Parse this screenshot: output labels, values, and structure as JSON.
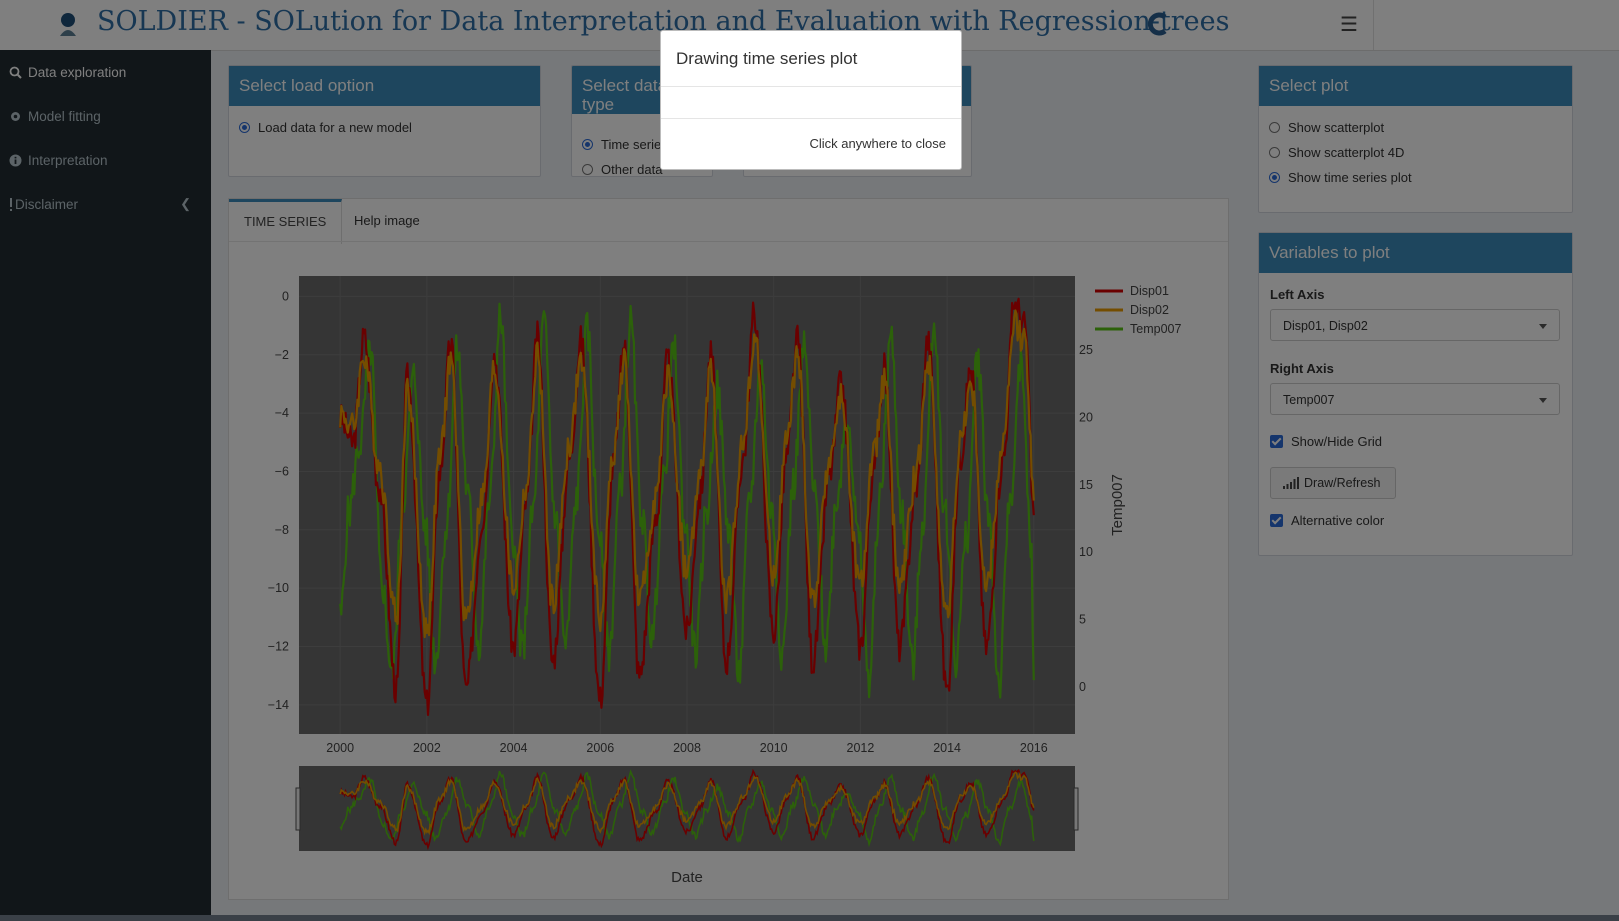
{
  "header": {
    "title": "SOLDIER - SOLution for Data Interpretation and Evaluation with Regression-trees",
    "menu_icon": "hamburger-icon"
  },
  "sidebar": {
    "items": [
      {
        "label": "Data exploration",
        "icon": "search-icon"
      },
      {
        "label": "Model fitting",
        "icon": "gear-icon"
      },
      {
        "label": "Interpretation",
        "icon": "info-icon"
      },
      {
        "label": "Disclaimer",
        "icon": "exclamation-icon"
      }
    ]
  },
  "load_box": {
    "title": "Select load option",
    "option": "Load data for a new model"
  },
  "data_type_box": {
    "title": "Select data type",
    "options": [
      "Time series",
      "Other data"
    ]
  },
  "tabs": {
    "time_series": "TIME SERIES",
    "help_image": "Help image"
  },
  "plot_box": {
    "title": "Select plot",
    "options": [
      "Show scatterplot",
      "Show scatterplot 4D",
      "Show time series plot"
    ],
    "selected": "Show time series plot"
  },
  "vars_box": {
    "title": "Variables to plot",
    "left_axis_label": "Left Axis",
    "left_axis_value": "Disp01, Disp02",
    "right_axis_label": "Right Axis",
    "right_axis_value": "Temp007",
    "grid_label": "Show/Hide Grid",
    "draw_label": "Draw/Refresh",
    "alt_color_label": "Alternative color"
  },
  "modal": {
    "title": "Drawing time series plot",
    "close_text": "Click anywhere to close"
  },
  "colors": {
    "accent": "#3c8dbc",
    "sidebar": "#222d32",
    "disp01": "#d40000",
    "disp02": "#e89a00",
    "temp007": "#58c214",
    "plot_bg": "#6a6a6a"
  },
  "chart_data": {
    "type": "line",
    "x_label": "Date",
    "y_label_left": "",
    "y_label_right": "Temp007",
    "x_ticks": [
      "2000",
      "2002",
      "2004",
      "2006",
      "2008",
      "2010",
      "2012",
      "2014",
      "2016"
    ],
    "y_left_ticks": [
      "0",
      "−2",
      "−4",
      "−6",
      "−8",
      "−10",
      "−12",
      "−14"
    ],
    "y_right_ticks": [
      "25",
      "20",
      "15",
      "10",
      "5",
      "0"
    ],
    "y_left_range": [
      -15,
      0.7
    ],
    "y_right_range": [
      -3.5,
      30.5
    ],
    "x_range": [
      1999.05,
      2016.95
    ],
    "grid": true,
    "legend_position": "top-right",
    "range_slider": true,
    "series": [
      {
        "name": "Disp01",
        "axis": "left",
        "x": [
          2000.0,
          2000.3,
          2000.55,
          2000.9,
          2001.3,
          2001.55,
          2002.0,
          2002.3,
          2002.55,
          2002.9,
          2003.3,
          2003.55,
          2004.0,
          2004.3,
          2004.55,
          2004.9,
          2005.3,
          2005.55,
          2006.0,
          2006.3,
          2006.55,
          2006.9,
          2007.3,
          2007.55,
          2008.0,
          2008.3,
          2008.55,
          2008.9,
          2009.3,
          2009.55,
          2010.0,
          2010.3,
          2010.55,
          2010.9,
          2011.3,
          2011.55,
          2012.0,
          2012.3,
          2012.55,
          2012.9,
          2013.3,
          2013.55,
          2014.0,
          2014.3,
          2014.55,
          2014.9,
          2015.3,
          2015.55,
          2015.8,
          2016.0
        ],
        "y": [
          -4.2,
          -5.0,
          -1.4,
          -6.5,
          -13.5,
          -2.8,
          -14.0,
          -6.0,
          -1.6,
          -13.5,
          -7.5,
          -2.0,
          -12.0,
          -7.0,
          -1.4,
          -12.5,
          -5.5,
          -1.5,
          -13.8,
          -5.8,
          -1.7,
          -13.0,
          -7.5,
          -2.2,
          -11.5,
          -6.8,
          -2.0,
          -12.5,
          -5.5,
          -0.6,
          -11.5,
          -5.5,
          -1.5,
          -12.5,
          -6.0,
          -3.0,
          -12.0,
          -6.0,
          -2.5,
          -12.0,
          -6.5,
          -1.5,
          -13.5,
          -5.5,
          -2.5,
          -12.0,
          -5.5,
          -0.2,
          -1.0,
          -7.5
        ]
      },
      {
        "name": "Disp02",
        "axis": "left",
        "x": [
          2000.0,
          2000.3,
          2000.55,
          2000.9,
          2001.3,
          2001.55,
          2002.0,
          2002.3,
          2002.55,
          2002.9,
          2003.3,
          2003.55,
          2004.0,
          2004.3,
          2004.55,
          2004.9,
          2005.3,
          2005.55,
          2006.0,
          2006.3,
          2006.55,
          2006.9,
          2007.3,
          2007.55,
          2008.0,
          2008.3,
          2008.55,
          2008.9,
          2009.3,
          2009.55,
          2010.0,
          2010.3,
          2010.55,
          2010.9,
          2011.3,
          2011.55,
          2012.0,
          2012.3,
          2012.55,
          2012.9,
          2013.3,
          2013.55,
          2014.0,
          2014.3,
          2014.55,
          2014.9,
          2015.3,
          2015.55,
          2015.8,
          2016.0
        ],
        "y": [
          -4.0,
          -4.5,
          -2.0,
          -5.8,
          -11.0,
          -3.2,
          -11.5,
          -5.5,
          -2.2,
          -11.0,
          -6.8,
          -2.5,
          -10.0,
          -6.5,
          -2.0,
          -10.5,
          -5.0,
          -2.2,
          -11.0,
          -5.3,
          -2.3,
          -10.5,
          -6.8,
          -2.8,
          -9.5,
          -6.2,
          -2.6,
          -10.5,
          -5.0,
          -1.4,
          -9.5,
          -5.0,
          -2.1,
          -10.5,
          -5.5,
          -3.5,
          -10.0,
          -5.5,
          -3.0,
          -10.0,
          -6.0,
          -2.2,
          -11.0,
          -5.0,
          -3.0,
          -10.0,
          -5.0,
          -1.0,
          -1.5,
          -7.0
        ]
      },
      {
        "name": "Temp007",
        "axis": "right",
        "x": [
          2000.0,
          2000.2,
          2000.45,
          2000.7,
          2000.95,
          2001.2,
          2001.45,
          2001.7,
          2001.95,
          2002.2,
          2002.45,
          2002.7,
          2002.95,
          2003.2,
          2003.45,
          2003.7,
          2003.95,
          2004.2,
          2004.45,
          2004.7,
          2004.95,
          2005.2,
          2005.45,
          2005.7,
          2005.95,
          2006.2,
          2006.45,
          2006.7,
          2006.95,
          2007.2,
          2007.45,
          2007.7,
          2007.95,
          2008.2,
          2008.45,
          2008.7,
          2008.95,
          2009.2,
          2009.45,
          2009.7,
          2009.95,
          2010.2,
          2010.45,
          2010.7,
          2010.95,
          2011.2,
          2011.45,
          2011.7,
          2011.95,
          2012.2,
          2012.45,
          2012.7,
          2012.95,
          2013.2,
          2013.45,
          2013.7,
          2013.95,
          2014.2,
          2014.45,
          2014.7,
          2014.95,
          2015.2,
          2015.45,
          2015.7,
          2015.95,
          2016.0
        ],
        "y": [
          5.0,
          13.0,
          18.0,
          25.0,
          8.0,
          1.0,
          14.0,
          23.0,
          12.0,
          2.0,
          12.0,
          25.0,
          14.0,
          3.0,
          14.0,
          27.5,
          12.0,
          2.5,
          13.0,
          27.0,
          13.0,
          3.0,
          14.0,
          26.5,
          12.0,
          2.5,
          14.5,
          27.0,
          13.0,
          3.5,
          15.0,
          25.0,
          12.0,
          2.5,
          13.0,
          22.0,
          12.0,
          1.0,
          14.0,
          24.0,
          13.0,
          2.5,
          15.0,
          25.0,
          14.0,
          3.0,
          14.0,
          20.5,
          11.0,
          0.5,
          14.0,
          26.0,
          13.0,
          1.5,
          12.5,
          27.0,
          13.0,
          2.0,
          11.0,
          24.5,
          13.0,
          0.0,
          14.0,
          23.5,
          10.0,
          0.5
        ]
      }
    ]
  }
}
